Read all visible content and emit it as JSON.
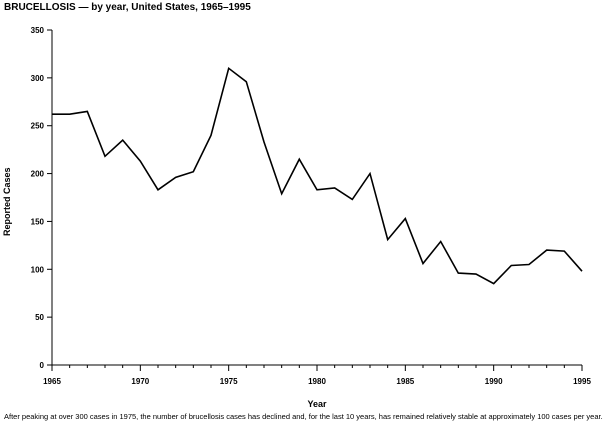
{
  "title": "BRUCELLOSIS — by year, United States, 1965–1995",
  "footnote": "After peaking at over 300 cases in 1975, the number of brucellosis cases has declined and, for the last 10 years, has remained relatively stable at approximately 100 cases per year.",
  "chart_data": {
    "type": "line",
    "title": "BRUCELLOSIS — by year, United States, 1965–1995",
    "xlabel": "Year",
    "ylabel": "Reported Cases",
    "xlim": [
      1965,
      1995
    ],
    "ylim": [
      0,
      350
    ],
    "xticks": [
      1965,
      1970,
      1975,
      1980,
      1985,
      1990,
      1995
    ],
    "yticks": [
      0,
      50,
      100,
      150,
      200,
      250,
      300,
      350
    ],
    "grid": false,
    "legend": "none",
    "series": [
      {
        "color": "#000000",
        "x": [
          1965,
          1966,
          1967,
          1968,
          1969,
          1970,
          1971,
          1972,
          1973,
          1974,
          1975,
          1976,
          1977,
          1978,
          1979,
          1980,
          1981,
          1982,
          1983,
          1984,
          1985,
          1986,
          1987,
          1988,
          1989,
          1990,
          1991,
          1992,
          1993,
          1994,
          1995
        ],
        "y": [
          262,
          262,
          265,
          218,
          235,
          213,
          183,
          196,
          202,
          240,
          310,
          296,
          233,
          179,
          215,
          183,
          185,
          173,
          200,
          131,
          153,
          106,
          129,
          96,
          95,
          85,
          104,
          105,
          120,
          119,
          98
        ]
      }
    ]
  }
}
